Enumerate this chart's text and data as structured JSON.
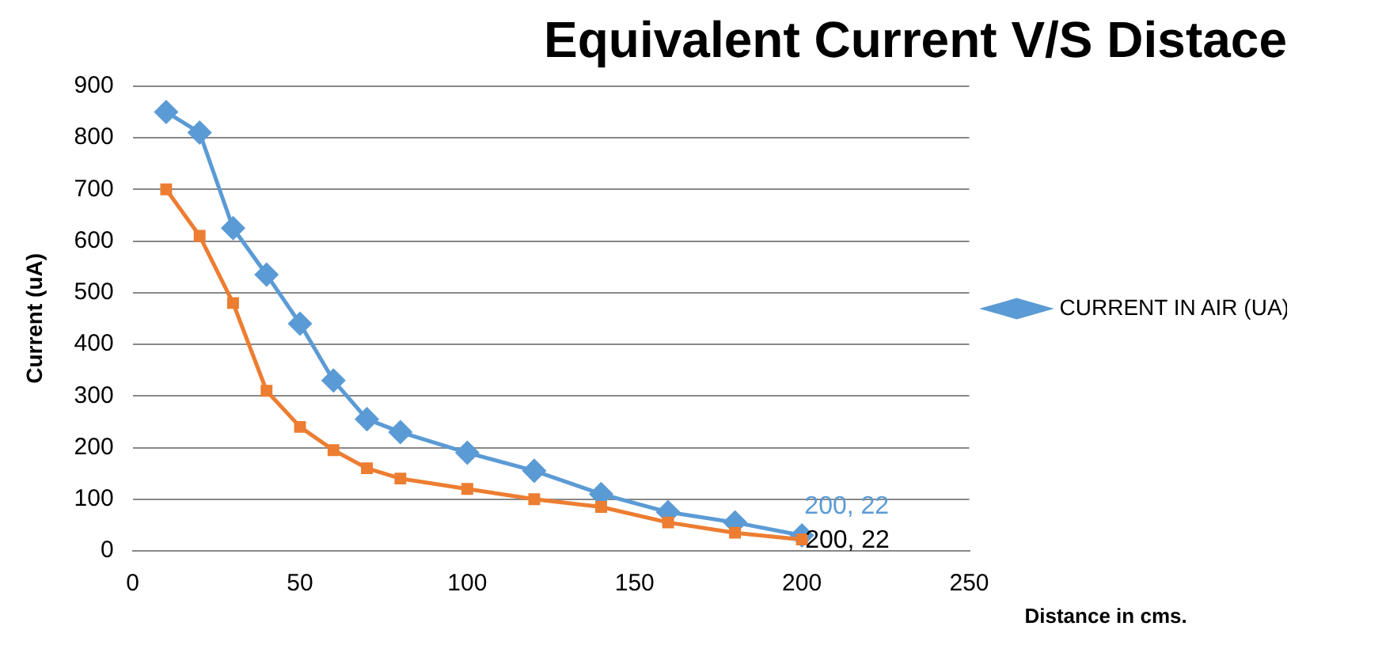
{
  "chart_data": {
    "type": "line",
    "title": "Equivalent Current V/S Distace",
    "xlabel": "Distance in cms.",
    "ylabel": "Current (uA)",
    "x": [
      10,
      20,
      30,
      40,
      50,
      60,
      70,
      80,
      100,
      120,
      140,
      160,
      180,
      200
    ],
    "series": [
      {
        "name": "CURRENT IN AIR (UA)",
        "color": "#5b9bd5",
        "marker": "diamond",
        "values": [
          850,
          810,
          625,
          535,
          440,
          330,
          255,
          230,
          190,
          155,
          110,
          75,
          55,
          30
        ]
      },
      {
        "color": "#ed7d31",
        "marker": "square",
        "values": [
          700,
          610,
          480,
          310,
          240,
          195,
          160,
          140,
          120,
          100,
          85,
          55,
          35,
          22
        ]
      }
    ],
    "annotations": [
      {
        "text": "200, 22",
        "x": 200,
        "y": 30
      },
      {
        "text": "200, 22",
        "x": 200,
        "y": 22
      }
    ],
    "xlim": [
      0,
      250
    ],
    "xticks": [
      0,
      50,
      100,
      150,
      200,
      250
    ],
    "ylim": [
      0,
      900
    ],
    "yticks": [
      0,
      100,
      200,
      300,
      400,
      500,
      600,
      700,
      800,
      900
    ],
    "grid": "y",
    "legend": "right"
  }
}
